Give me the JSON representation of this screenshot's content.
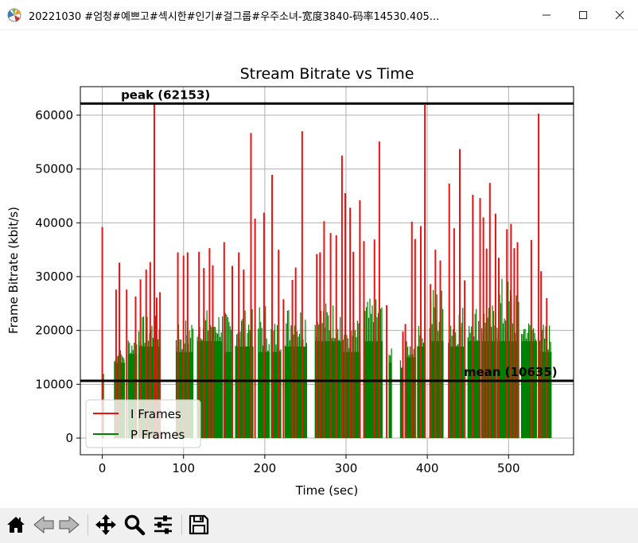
{
  "window": {
    "title": "20221030 #엄청#예쁘고#섹시한#인기#걸그룹#우주소녀-宽度3840-码率14530.405...",
    "app_icon": "matplotlib-icon",
    "minimize_icon": "minimize-icon",
    "maximize_icon": "maximize-icon",
    "close_icon": "close-icon"
  },
  "toolbar": {
    "buttons": [
      {
        "name": "home-icon",
        "label": "Home"
      },
      {
        "name": "back-arrow-icon",
        "label": "Back"
      },
      {
        "name": "forward-arrow-icon",
        "label": "Forward"
      },
      {
        "name": "pan-icon",
        "label": "Pan"
      },
      {
        "name": "zoom-icon",
        "label": "Zoom"
      },
      {
        "name": "configure-subplots-icon",
        "label": "Configure subplots"
      },
      {
        "name": "save-icon",
        "label": "Save"
      }
    ]
  },
  "chart_data": {
    "type": "bar",
    "title": "Stream Bitrate vs Time",
    "xlabel": "Time (sec)",
    "ylabel": "Frame Bitrate (kbit/s)",
    "xlim": [
      -27,
      580
    ],
    "ylim": [
      -3100,
      65300
    ],
    "xticks": [
      0,
      100,
      200,
      300,
      400,
      500
    ],
    "yticks": [
      0,
      10000,
      20000,
      30000,
      40000,
      50000,
      60000
    ],
    "grid": true,
    "legend": {
      "position": "lower-left",
      "entries": [
        {
          "label": "I Frames",
          "color": "#ee1111"
        },
        {
          "label": "P Frames",
          "color": "#008000"
        }
      ]
    },
    "hlines": [
      {
        "label": "peak (62153)",
        "value": 62153,
        "color": "#000000"
      },
      {
        "label": "mean (10635)",
        "value": 10635,
        "color": "#000000"
      }
    ],
    "i_frames": {
      "name": "I Frames",
      "color": "#ee1111",
      "x": [
        0,
        17,
        21,
        30,
        41,
        47,
        54,
        59,
        64,
        67,
        71,
        93,
        100,
        105,
        119,
        125,
        132,
        136,
        150,
        160,
        168,
        174,
        183,
        188,
        199,
        209,
        217,
        223,
        234,
        238,
        246,
        264,
        268,
        273,
        281,
        288,
        295,
        299,
        305,
        309,
        317,
        322,
        335,
        341,
        350,
        370,
        373,
        381,
        385,
        392,
        397,
        404,
        410,
        416,
        427,
        433,
        440,
        446,
        456,
        465,
        469,
        473,
        477,
        484,
        488,
        498,
        503,
        507,
        511,
        528,
        537,
        540,
        547
      ],
      "values": [
        39200,
        27600,
        32600,
        27600,
        26300,
        29500,
        31300,
        32700,
        62153,
        26100,
        27100,
        34500,
        33900,
        34500,
        34600,
        31600,
        35300,
        32100,
        36400,
        32000,
        34500,
        31300,
        56700,
        40800,
        41900,
        48900,
        35000,
        25800,
        29400,
        31700,
        57000,
        34200,
        34500,
        40300,
        38100,
        37700,
        52500,
        45500,
        42800,
        34600,
        44200,
        36600,
        36900,
        55100,
        24700,
        19800,
        21200,
        40200,
        37000,
        39400,
        61900,
        28600,
        35000,
        33000,
        47300,
        39000,
        53700,
        29300,
        45200,
        44600,
        41000,
        35200,
        47400,
        41700,
        33500,
        38800,
        39800,
        35300,
        36400,
        36800,
        60300,
        31000,
        26000
      ]
    },
    "p_segments": [
      {
        "x_start": 0,
        "x_end": 2,
        "base": 7000,
        "max": 15800
      },
      {
        "x_start": 15,
        "x_end": 28,
        "base": 14000,
        "max": 16600
      },
      {
        "x_start": 32,
        "x_end": 43,
        "base": 15600,
        "max": 18800
      },
      {
        "x_start": 45,
        "x_end": 70,
        "base": 17000,
        "max": 22800
      },
      {
        "x_start": 91,
        "x_end": 112,
        "base": 16000,
        "max": 22600
      },
      {
        "x_start": 117,
        "x_end": 148,
        "base": 18000,
        "max": 24000
      },
      {
        "x_start": 150,
        "x_end": 160,
        "base": 16000,
        "max": 23500
      },
      {
        "x_start": 164,
        "x_end": 186,
        "base": 17000,
        "max": 24000
      },
      {
        "x_start": 192,
        "x_end": 206,
        "base": 16000,
        "max": 25500
      },
      {
        "x_start": 208,
        "x_end": 220,
        "base": 16000,
        "max": 22000
      },
      {
        "x_start": 225,
        "x_end": 252,
        "base": 17000,
        "max": 25000
      },
      {
        "x_start": 262,
        "x_end": 294,
        "base": 18000,
        "max": 25500
      },
      {
        "x_start": 295,
        "x_end": 318,
        "base": 16000,
        "max": 22000
      },
      {
        "x_start": 322,
        "x_end": 345,
        "base": 18000,
        "max": 26000
      },
      {
        "x_start": 353,
        "x_end": 356,
        "base": 14000,
        "max": 17000
      },
      {
        "x_start": 367,
        "x_end": 370,
        "base": 13000,
        "max": 15000
      },
      {
        "x_start": 373,
        "x_end": 386,
        "base": 15000,
        "max": 18000
      },
      {
        "x_start": 388,
        "x_end": 397,
        "base": 17000,
        "max": 21000
      },
      {
        "x_start": 403,
        "x_end": 420,
        "base": 18000,
        "max": 28500
      },
      {
        "x_start": 426,
        "x_end": 445,
        "base": 17000,
        "max": 25000
      },
      {
        "x_start": 450,
        "x_end": 466,
        "base": 18000,
        "max": 25000
      },
      {
        "x_start": 467,
        "x_end": 485,
        "base": 18000,
        "max": 25000
      },
      {
        "x_start": 486,
        "x_end": 513,
        "base": 18000,
        "max": 30000
      },
      {
        "x_start": 516,
        "x_end": 535,
        "base": 18000,
        "max": 22000
      },
      {
        "x_start": 537,
        "x_end": 553,
        "base": 16000,
        "max": 21500
      }
    ]
  }
}
